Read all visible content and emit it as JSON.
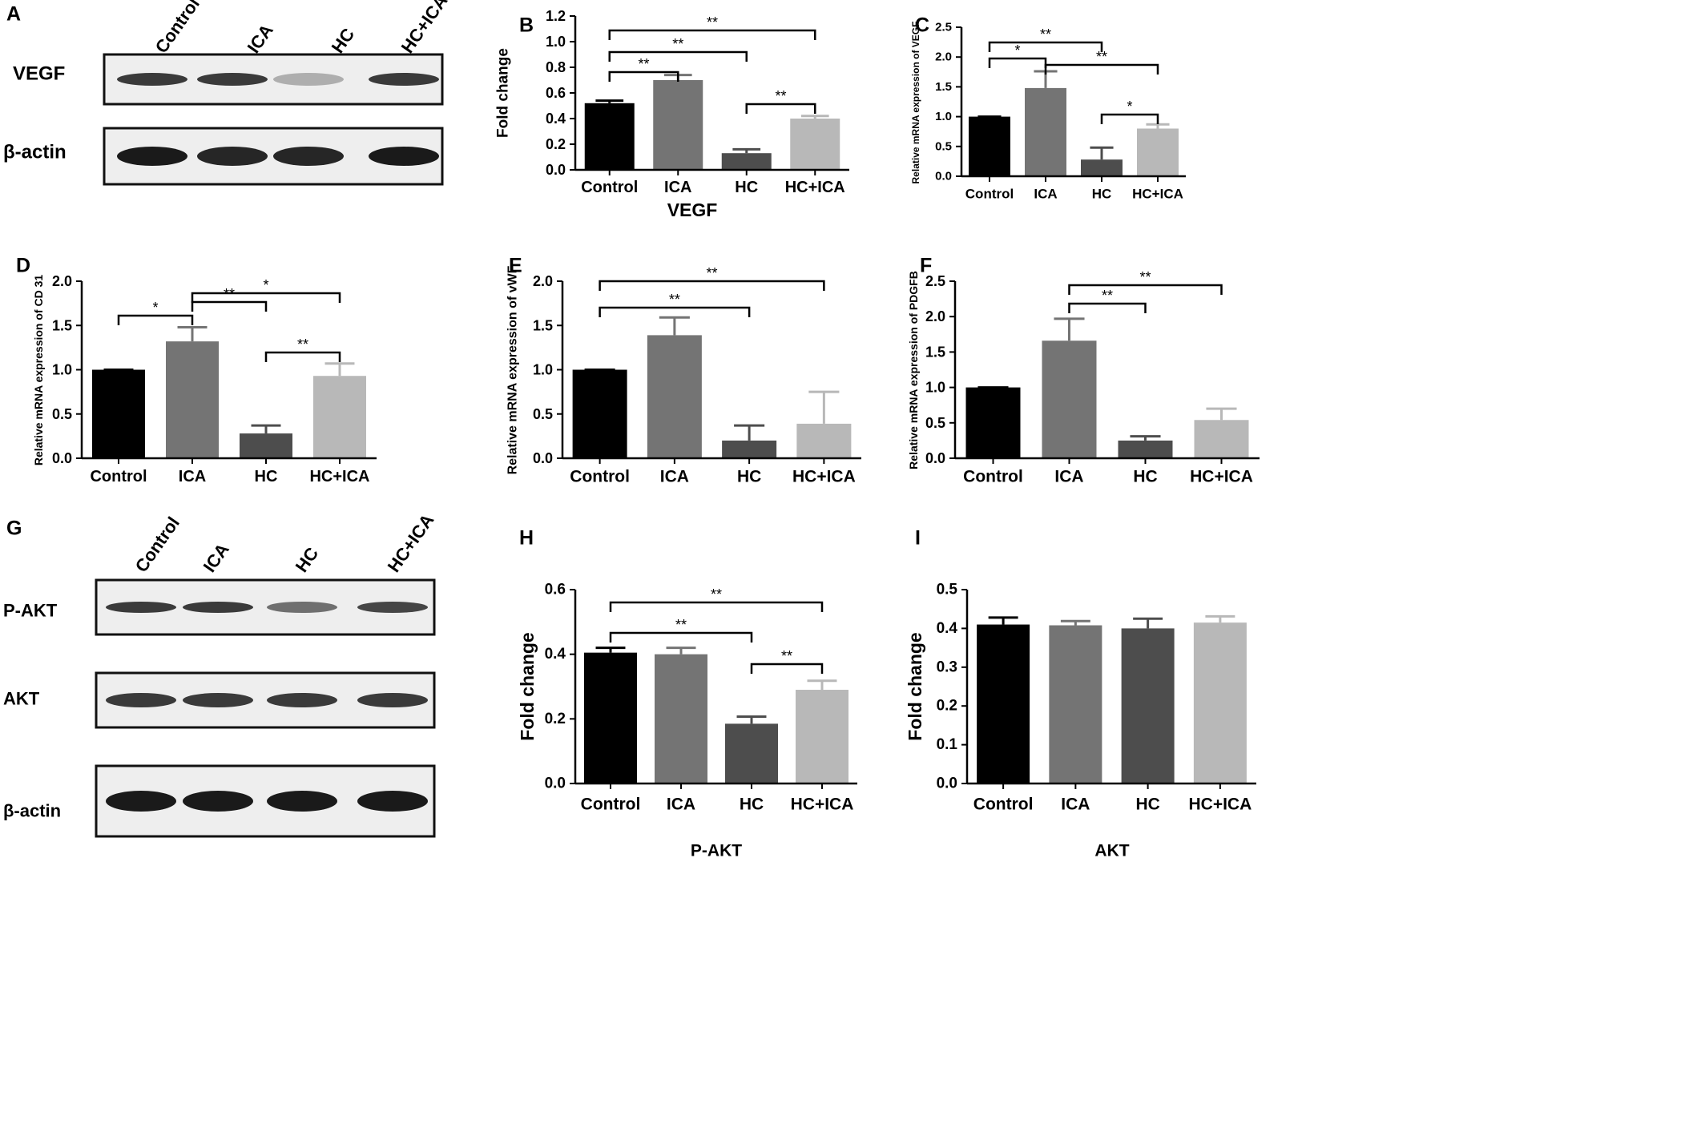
{
  "panels": [
    {
      "id": "A",
      "type": "blot",
      "letter": "A",
      "lanes": [
        "Control",
        "ICA",
        "HC",
        "HC+ICA"
      ],
      "rows": [
        {
          "label": "VEGF",
          "intensity": [
            0.85,
            0.85,
            0.3,
            0.85
          ]
        },
        {
          "label": "β-actin",
          "intensity": [
            1,
            0.95,
            0.95,
            1
          ]
        }
      ]
    },
    {
      "id": "G",
      "type": "blot",
      "letter": "G",
      "lanes": [
        "Control",
        "ICA",
        "HC",
        "HC+ICA"
      ],
      "rows": [
        {
          "label": "P-AKT",
          "intensity": [
            0.85,
            0.85,
            0.6,
            0.8
          ]
        },
        {
          "label": "AKT",
          "intensity": [
            0.85,
            0.85,
            0.85,
            0.85
          ]
        },
        {
          "label": "β-actin",
          "intensity": [
            1,
            1,
            1,
            1
          ]
        }
      ]
    }
  ],
  "chart_data": [
    {
      "id": "B",
      "letter": "B",
      "type": "bar",
      "categories": [
        "Control",
        "ICA",
        "HC",
        "HC+ICA"
      ],
      "values": [
        0.52,
        0.7,
        0.13,
        0.4
      ],
      "errors": [
        0.02,
        0.04,
        0.03,
        0.02
      ],
      "ylabel": "Fold change",
      "xlabel": "VEGF",
      "ylim": [
        0,
        1.2
      ],
      "yticks": [
        "0.0",
        "0.2",
        "0.4",
        "0.6",
        "0.8",
        "1.0",
        "1.2"
      ],
      "brackets": [
        {
          "from": 0,
          "to": 1,
          "label": "**"
        },
        {
          "from": 0,
          "to": 2,
          "label": "**"
        },
        {
          "from": 0,
          "to": 3,
          "label": "**"
        },
        {
          "from": 2,
          "to": 3,
          "label": "**"
        }
      ]
    },
    {
      "id": "C",
      "letter": "C",
      "type": "bar",
      "categories": [
        "Control",
        "ICA",
        "HC",
        "HC+ICA"
      ],
      "values": [
        1.0,
        1.48,
        0.28,
        0.8
      ],
      "errors": [
        0,
        0.28,
        0.2,
        0.07
      ],
      "ylabel": "Relative mRNA expression of VEGF",
      "xlabel": "",
      "ylim": [
        0,
        2.5
      ],
      "yticks": [
        "0.0",
        "0.5",
        "1.0",
        "1.5",
        "2.0",
        "2.5"
      ],
      "brackets": [
        {
          "from": 0,
          "to": 1,
          "label": "*"
        },
        {
          "from": 0,
          "to": 2,
          "label": "**"
        },
        {
          "from": 1,
          "to": 3,
          "label": "**"
        },
        {
          "from": 2,
          "to": 3,
          "label": "*"
        }
      ]
    },
    {
      "id": "D",
      "letter": "D",
      "type": "bar",
      "categories": [
        "Control",
        "ICA",
        "HC",
        "HC+ICA"
      ],
      "values": [
        1.0,
        1.32,
        0.28,
        0.93
      ],
      "errors": [
        0,
        0.16,
        0.09,
        0.14
      ],
      "ylabel": "Relative mRNA expression of CD 31",
      "xlabel": "",
      "ylim": [
        0,
        2.0
      ],
      "yticks": [
        "0.0",
        "0.5",
        "1.0",
        "1.5",
        "2.0"
      ],
      "brackets": [
        {
          "from": 0,
          "to": 1,
          "label": "*"
        },
        {
          "from": 1,
          "to": 2,
          "label": "**"
        },
        {
          "from": 1,
          "to": 3,
          "label": "*"
        },
        {
          "from": 2,
          "to": 3,
          "label": "**"
        }
      ]
    },
    {
      "id": "E",
      "letter": "E",
      "type": "bar",
      "categories": [
        "Control",
        "ICA",
        "HC",
        "HC+ICA"
      ],
      "values": [
        1.0,
        1.39,
        0.2,
        0.39
      ],
      "errors": [
        0,
        0.2,
        0.17,
        0.36
      ],
      "ylabel": "Relative mRNA expression of vWF",
      "xlabel": "",
      "ylim": [
        0,
        2.0
      ],
      "yticks": [
        "0.0",
        "0.5",
        "1.0",
        "1.5",
        "2.0"
      ],
      "brackets": [
        {
          "from": 0,
          "to": 2,
          "label": "**"
        },
        {
          "from": 0,
          "to": 3,
          "label": "**"
        }
      ]
    },
    {
      "id": "F",
      "letter": "F",
      "type": "bar",
      "categories": [
        "Control",
        "ICA",
        "HC",
        "HC+ICA"
      ],
      "values": [
        1.0,
        1.66,
        0.25,
        0.54
      ],
      "errors": [
        0,
        0.31,
        0.06,
        0.16
      ],
      "ylabel": "Relative mRNA expression of PDGFB",
      "xlabel": "",
      "ylim": [
        0,
        2.5
      ],
      "yticks": [
        "0.0",
        "0.5",
        "1.0",
        "1.5",
        "2.0",
        "2.5"
      ],
      "brackets": [
        {
          "from": 1,
          "to": 2,
          "label": "**"
        },
        {
          "from": 1,
          "to": 3,
          "label": "**"
        }
      ]
    },
    {
      "id": "H",
      "letter": "H",
      "type": "bar",
      "categories": [
        "Control",
        "ICA",
        "HC",
        "HC+ICA"
      ],
      "values": [
        0.405,
        0.4,
        0.185,
        0.29
      ],
      "errors": [
        0.015,
        0.02,
        0.022,
        0.028
      ],
      "ylabel": "Fold change",
      "xlabel": "P-AKT",
      "ylim": [
        0,
        0.6
      ],
      "yticks": [
        "0.0",
        "0.2",
        "0.4",
        "0.6"
      ],
      "brackets": [
        {
          "from": 0,
          "to": 2,
          "label": "**"
        },
        {
          "from": 0,
          "to": 3,
          "label": "**"
        },
        {
          "from": 2,
          "to": 3,
          "label": "**"
        }
      ]
    },
    {
      "id": "I",
      "letter": "I",
      "type": "bar",
      "categories": [
        "Control",
        "ICA",
        "HC",
        "HC+ICA"
      ],
      "values": [
        0.41,
        0.408,
        0.4,
        0.415
      ],
      "errors": [
        0.018,
        0.011,
        0.025,
        0.016
      ],
      "ylabel": "Fold change",
      "xlabel": "AKT",
      "ylim": [
        0,
        0.5
      ],
      "yticks": [
        "0.0",
        "0.1",
        "0.2",
        "0.3",
        "0.4",
        "0.5"
      ],
      "brackets": []
    }
  ],
  "colors": {
    "bars": [
      "#000000",
      "#747474",
      "#4d4d4d",
      "#b8b8b8"
    ],
    "axis": "#000000",
    "blot_bg": "#eeeeee",
    "band": "#1a1a1a"
  }
}
